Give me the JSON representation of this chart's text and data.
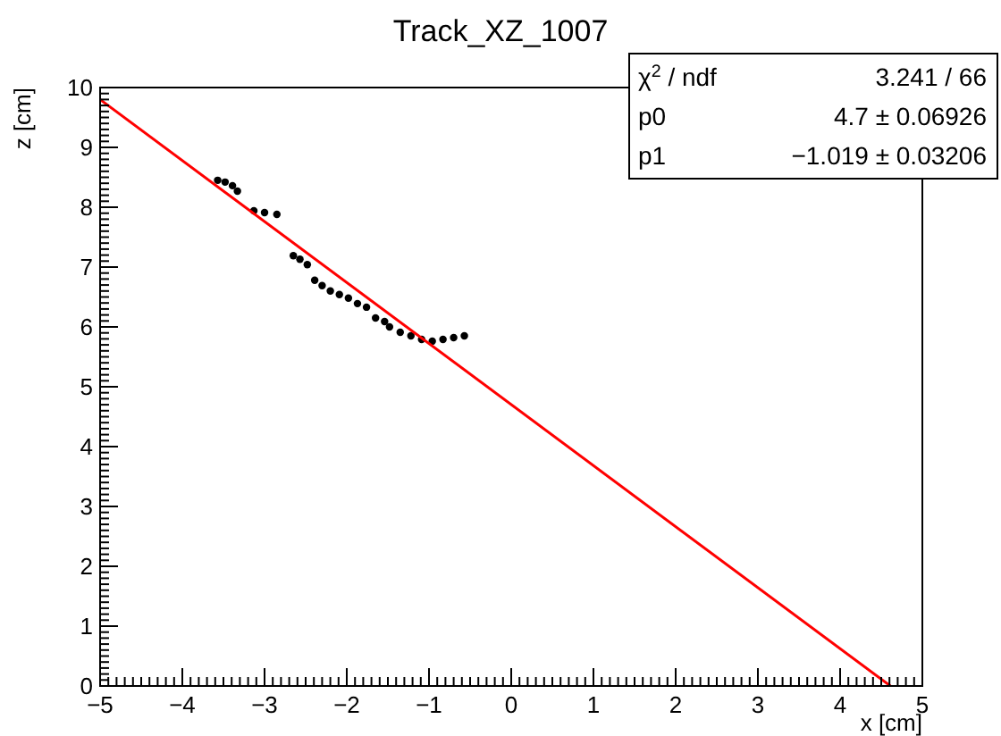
{
  "chart_data": {
    "type": "scatter",
    "title": "Track_XZ_1007",
    "xlabel": "x [cm]",
    "ylabel": "z [cm]",
    "xlim": [
      -5,
      5
    ],
    "ylim": [
      0,
      10
    ],
    "xticks": [
      -5,
      -4,
      -3,
      -2,
      -1,
      0,
      1,
      2,
      3,
      4,
      5
    ],
    "yticks": [
      0,
      1,
      2,
      3,
      4,
      5,
      6,
      7,
      8,
      9,
      10
    ],
    "grid": false,
    "annotations": [
      "χ$^{2}$ / ndf  3.241 / 66",
      "p0  4.7 ± 0.06926",
      "p1  −1.019 ± 0.03206"
    ],
    "series": [
      {
        "marker": "circle",
        "color": "#000000",
        "x": [
          -3.57,
          -3.48,
          -3.39,
          -3.33,
          -3.13,
          -3.0,
          -2.85,
          -2.65,
          -2.57,
          -2.48,
          -2.39,
          -2.3,
          -2.2,
          -2.09,
          -1.98,
          -1.87,
          -1.76,
          -1.65,
          -1.54,
          -1.48,
          -1.35,
          -1.22,
          -1.09,
          -0.96,
          -0.83,
          -0.7,
          -0.57
        ],
        "values": [
          8.45,
          8.42,
          8.36,
          8.27,
          7.94,
          7.91,
          7.88,
          7.19,
          7.13,
          7.04,
          6.78,
          6.69,
          6.6,
          6.54,
          6.48,
          6.39,
          6.33,
          6.15,
          6.09,
          6.0,
          5.91,
          5.85,
          5.79,
          5.76,
          5.79,
          5.82,
          5.85
        ]
      },
      {
        "type": "line",
        "color": "#ff0000",
        "x": [
          -5,
          4.612
        ],
        "values": [
          9.8,
          0
        ]
      }
    ]
  }
}
